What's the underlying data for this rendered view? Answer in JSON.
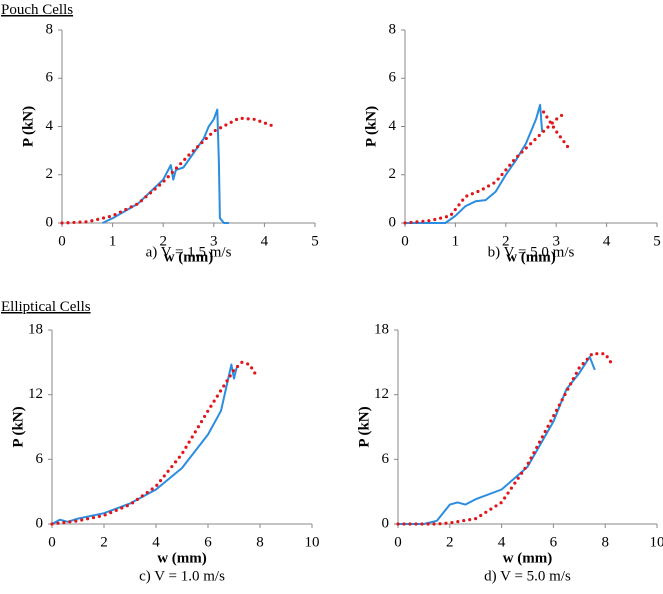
{
  "sections": [
    "Pouch Cells",
    "Elliptical Cells"
  ],
  "chart_data": [
    {
      "type": "line",
      "caption": "a)   V = 1.5 m/s",
      "xlabel": "w (mm)",
      "ylabel": "P (kN)",
      "xlim": [
        0,
        5
      ],
      "xticks": [
        0,
        1,
        2,
        3,
        4,
        5
      ],
      "ylim": [
        0,
        8
      ],
      "yticks": [
        0,
        2,
        4,
        6,
        8
      ],
      "series": [
        {
          "color": "#2b8de0",
          "style": "solid",
          "x": [
            0.8,
            1,
            1.5,
            2,
            2.15,
            2.2,
            2.25,
            2.4,
            2.6,
            2.8,
            2.9,
            3.0,
            3.07,
            3.1,
            3.12,
            3.2,
            3.3
          ],
          "values": [
            0,
            0.2,
            0.8,
            1.8,
            2.4,
            1.8,
            2.2,
            2.3,
            2.9,
            3.5,
            4.0,
            4.3,
            4.7,
            2.5,
            0.2,
            0,
            0
          ]
        },
        {
          "color": "#e0161b",
          "style": "dotted",
          "x": [
            0,
            0.5,
            1,
            1.5,
            2,
            2.5,
            3,
            3.5,
            3.8,
            4.2
          ],
          "values": [
            0,
            0.05,
            0.3,
            0.8,
            1.7,
            2.8,
            3.8,
            4.35,
            4.3,
            4.0
          ]
        }
      ]
    },
    {
      "type": "line",
      "caption": "b)   V = 5.0 m/s",
      "xlabel": "w (mm)",
      "ylabel": "P (kN)",
      "xlim": [
        0,
        5
      ],
      "xticks": [
        0,
        1,
        2,
        3,
        4,
        5
      ],
      "ylim": [
        0,
        8
      ],
      "yticks": [
        0,
        2,
        4,
        6,
        8
      ],
      "series": [
        {
          "color": "#2b8de0",
          "style": "solid",
          "x": [
            0,
            0.8,
            1,
            1.2,
            1.4,
            1.6,
            1.8,
            2,
            2.2,
            2.4,
            2.6,
            2.68,
            2.72,
            2.75
          ],
          "values": [
            0,
            0,
            0.3,
            0.7,
            0.9,
            0.95,
            1.3,
            2.0,
            2.6,
            3.3,
            4.3,
            4.9,
            3.8,
            3.8
          ]
        },
        {
          "color": "#e0161b",
          "style": "dotted",
          "x": [
            0,
            0.5,
            0.9,
            1.2,
            1.5,
            1.8,
            2.2,
            2.6,
            2.8,
            3.0,
            3.2,
            null,
            2.75,
            3.0,
            3.25
          ],
          "values": [
            0,
            0.1,
            0.3,
            1.1,
            1.35,
            1.7,
            2.7,
            3.5,
            3.9,
            4.3,
            4.6,
            null,
            4.6,
            3.8,
            3.1
          ]
        }
      ]
    },
    {
      "type": "line",
      "caption": "c)   V = 1.0 m/s",
      "xlabel": "w (mm)",
      "ylabel": "P (kN)",
      "xlim": [
        0,
        10
      ],
      "xticks": [
        0,
        2,
        4,
        6,
        8,
        10
      ],
      "ylim": [
        0,
        18
      ],
      "yticks": [
        0,
        6,
        12,
        18
      ],
      "series": [
        {
          "color": "#2b8de0",
          "style": "solid",
          "x": [
            0,
            0.3,
            0.6,
            1,
            2,
            3,
            4,
            5,
            6,
            6.5,
            6.9,
            7.0,
            7.1
          ],
          "values": [
            0,
            0.4,
            0.2,
            0.5,
            1.0,
            1.9,
            3.2,
            5.2,
            8.3,
            10.5,
            14.8,
            13.5,
            14.5
          ]
        },
        {
          "color": "#e0161b",
          "style": "dotted",
          "x": [
            0,
            1,
            2,
            3,
            4,
            5,
            6,
            7,
            7.3,
            7.6,
            7.8
          ],
          "values": [
            0,
            0.3,
            0.8,
            1.8,
            3.5,
            6.5,
            10.5,
            14.3,
            15,
            14.8,
            14
          ]
        }
      ]
    },
    {
      "type": "line",
      "caption": "d)   V = 5.0 m/s",
      "xlabel": "w (mm)",
      "ylabel": "P (kN)",
      "xlim": [
        0,
        10
      ],
      "xticks": [
        0,
        2,
        4,
        6,
        8,
        10
      ],
      "ylim": [
        0,
        18
      ],
      "yticks": [
        0,
        6,
        12,
        18
      ],
      "series": [
        {
          "color": "#2b8de0",
          "style": "solid",
          "x": [
            0,
            1,
            1.5,
            2,
            2.3,
            2.6,
            3,
            4,
            5,
            6,
            6.5,
            7,
            7.4,
            7.6
          ],
          "values": [
            0,
            0,
            0.3,
            1.8,
            2.0,
            1.8,
            2.3,
            3.2,
            5.3,
            9.5,
            12.5,
            14,
            15.5,
            14.3
          ]
        },
        {
          "color": "#e0161b",
          "style": "dotted",
          "x": [
            0,
            1.5,
            2,
            3,
            4,
            5,
            6,
            7,
            7.5,
            8,
            8.3
          ],
          "values": [
            0,
            0,
            0.1,
            0.5,
            2,
            5.5,
            10,
            14.5,
            15.8,
            15.8,
            14.7
          ]
        }
      ]
    }
  ]
}
